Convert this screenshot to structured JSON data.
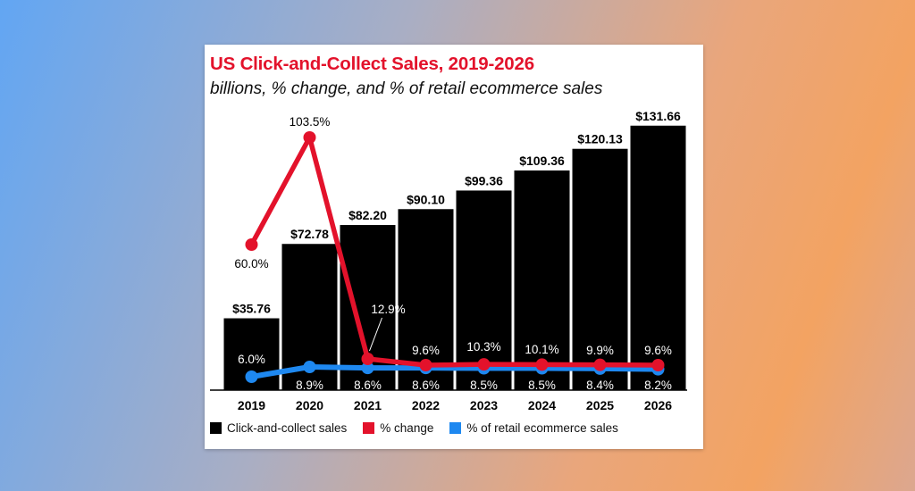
{
  "chart_data": {
    "type": "bar",
    "title": "US Click-and-Collect Sales, 2019-2026",
    "subtitle": "billions, % change, and % of retail ecommerce sales",
    "categories": [
      "2019",
      "2020",
      "2021",
      "2022",
      "2023",
      "2024",
      "2025",
      "2026"
    ],
    "series": [
      {
        "name": "Click-and-collect sales",
        "type": "bar",
        "color": "#000000",
        "values": [
          35.76,
          72.78,
          82.2,
          90.1,
          99.36,
          109.36,
          120.13,
          131.66
        ],
        "labels": [
          "$35.76",
          "$72.78",
          "$82.20",
          "$90.10",
          "$99.36",
          "$109.36",
          "$120.13",
          "$131.66"
        ]
      },
      {
        "name": "% change",
        "type": "line",
        "color": "#e3122b",
        "values": [
          60.0,
          103.5,
          12.9,
          9.6,
          10.3,
          10.1,
          9.9,
          9.6
        ],
        "labels": [
          "60.0%",
          "103.5%",
          "12.9%",
          "9.6%",
          "10.3%",
          "10.1%",
          "9.9%",
          "9.6%"
        ]
      },
      {
        "name": "% of retail ecommerce sales",
        "type": "line",
        "color": "#1e88f0",
        "values": [
          6.0,
          8.9,
          8.6,
          8.6,
          8.5,
          8.5,
          8.4,
          8.2
        ],
        "labels": [
          "6.0%",
          "8.9%",
          "8.6%",
          "8.6%",
          "8.5%",
          "8.5%",
          "8.4%",
          "8.2%"
        ]
      }
    ],
    "ylim": [
      0,
      140
    ],
    "grid": false,
    "legend": "bottom"
  }
}
